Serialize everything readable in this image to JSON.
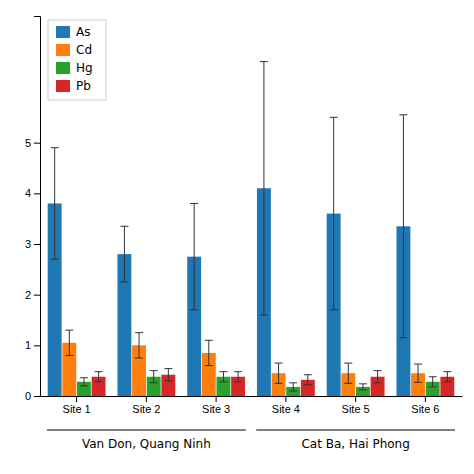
{
  "chart_data": {
    "type": "bar",
    "categories": [
      "Site 1",
      "Site 2",
      "Site 3",
      "Site 4",
      "Site 5",
      "Site 6"
    ],
    "groups": [
      {
        "name": "Van Don, Quang Ninh",
        "categories": [
          "Site 1",
          "Site 2",
          "Site 3"
        ]
      },
      {
        "name": "Cat Ba, Hai Phong",
        "categories": [
          "Site 4",
          "Site 5",
          "Site 6"
        ]
      }
    ],
    "series": [
      {
        "name": "As",
        "values": [
          3.8,
          2.8,
          2.75,
          4.1,
          3.6,
          3.35
        ],
        "errors": [
          1.1,
          0.55,
          1.05,
          2.5,
          1.9,
          2.2
        ]
      },
      {
        "name": "Cd",
        "values": [
          1.05,
          1.0,
          0.85,
          0.45,
          0.45,
          0.45
        ],
        "errors": [
          0.25,
          0.25,
          0.25,
          0.2,
          0.2,
          0.18
        ]
      },
      {
        "name": "Hg",
        "values": [
          0.28,
          0.38,
          0.38,
          0.18,
          0.18,
          0.28
        ],
        "errors": [
          0.08,
          0.12,
          0.1,
          0.08,
          0.06,
          0.1
        ]
      },
      {
        "name": "Pb",
        "values": [
          0.38,
          0.42,
          0.38,
          0.32,
          0.38,
          0.38
        ],
        "errors": [
          0.1,
          0.12,
          0.1,
          0.1,
          0.12,
          0.1
        ]
      }
    ],
    "ylim": [
      0,
      7.5
    ],
    "yticks": [
      0,
      1,
      2,
      3,
      4,
      5
    ],
    "legend": "upper left",
    "grid": false
  }
}
